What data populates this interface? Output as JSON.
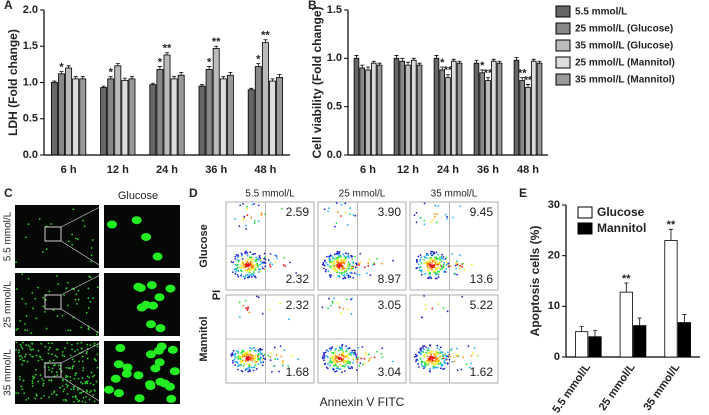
{
  "chart_data": [
    {
      "type": "bar",
      "panel": "A",
      "y_label": "LDH (Fold change)",
      "categories": [
        "6 h",
        "12 h",
        "24 h",
        "36 h",
        "48 h"
      ],
      "ylim": [
        0,
        2
      ],
      "yticks": [
        {
          "value": 0,
          "label": "0.0"
        },
        0.5,
        {
          "value": 1,
          "label": "1.0"
        },
        1.5,
        {
          "value": 2,
          "label": "2.0"
        }
      ],
      "grid": false,
      "series": [
        {
          "color": "#666666",
          "values": [
            1.0,
            0.93,
            0.97,
            0.95,
            0.9
          ],
          "errors": [
            0.02,
            0.02,
            0.02,
            0.02,
            0.02
          ],
          "significance": [
            null,
            null,
            null,
            null,
            null
          ]
        },
        {
          "color": "#888888",
          "values": [
            1.12,
            1.05,
            1.18,
            1.18,
            1.22
          ],
          "errors": [
            0.03,
            0.03,
            0.04,
            0.04,
            0.04
          ],
          "significance": [
            "*",
            "*",
            "*",
            "*",
            "*"
          ]
        },
        {
          "color": "#bbbbbb",
          "values": [
            1.2,
            1.23,
            1.38,
            1.47,
            1.55
          ],
          "errors": [
            0.03,
            0.03,
            0.03,
            0.03,
            0.04
          ],
          "significance": [
            null,
            null,
            "**",
            "**",
            "**"
          ]
        },
        {
          "color": "#dddddd",
          "values": [
            1.05,
            1.03,
            1.05,
            1.05,
            1.02
          ],
          "errors": [
            0.03,
            0.03,
            0.03,
            0.03,
            0.03
          ],
          "significance": [
            null,
            null,
            null,
            null,
            null
          ]
        },
        {
          "color": "#999999",
          "values": [
            1.05,
            1.05,
            1.1,
            1.1,
            1.07
          ],
          "errors": [
            0.03,
            0.03,
            0.04,
            0.04,
            0.04
          ],
          "significance": [
            null,
            null,
            null,
            null,
            null
          ]
        }
      ]
    },
    {
      "type": "bar",
      "panel": "B",
      "y_label": "Cell viability (Fold change)",
      "categories": [
        "6 h",
        "12 h",
        "24 h",
        "36 h",
        "48 h"
      ],
      "ylim": [
        0,
        1.5
      ],
      "yticks": [
        {
          "value": 0,
          "label": "0.0"
        },
        0.5,
        {
          "value": 1,
          "label": "1.0"
        },
        1.5
      ],
      "grid": false,
      "legend": "right",
      "series": [
        {
          "name": "5.5 mmol/L",
          "color": "#666666",
          "values": [
            1.0,
            1.0,
            1.0,
            0.95,
            0.98
          ],
          "errors": [
            0.03,
            0.03,
            0.03,
            0.03,
            0.03
          ],
          "significance": [
            null,
            null,
            null,
            null,
            null
          ]
        },
        {
          "name": "25 mmol/L (Glucose)",
          "color": "#888888",
          "values": [
            0.9,
            0.97,
            0.88,
            0.85,
            0.77
          ],
          "errors": [
            0.03,
            0.03,
            0.03,
            0.03,
            0.03
          ],
          "significance": [
            null,
            null,
            "*",
            "*",
            "**"
          ]
        },
        {
          "name": "35 mmol/L (Glucose)",
          "color": "#bbbbbb",
          "values": [
            0.88,
            0.93,
            0.8,
            0.77,
            0.7
          ],
          "errors": [
            0.03,
            0.03,
            0.03,
            0.03,
            0.03
          ],
          "significance": [
            null,
            null,
            "**",
            "**",
            "**"
          ]
        },
        {
          "name": "25 mmol/L (Mannitol)",
          "color": "#dddddd",
          "values": [
            0.95,
            0.98,
            0.97,
            0.97,
            0.97
          ],
          "errors": [
            0.02,
            0.02,
            0.02,
            0.02,
            0.02
          ],
          "significance": [
            null,
            null,
            null,
            null,
            null
          ]
        },
        {
          "name": "35 mmol/L (Mannitol)",
          "color": "#999999",
          "values": [
            0.93,
            0.93,
            0.95,
            0.95,
            0.95
          ],
          "errors": [
            0.02,
            0.02,
            0.02,
            0.02,
            0.02
          ],
          "significance": [
            null,
            null,
            null,
            null,
            null
          ]
        }
      ]
    },
    {
      "type": "bar",
      "panel": "E",
      "y_label": "Apoptosis cells (%)",
      "categories": [
        "5.5 mmol/L",
        "25 mmol/L",
        "35 mmol/L"
      ],
      "ylim": [
        0,
        30
      ],
      "yticks": [
        0,
        10,
        20,
        30
      ],
      "grid": false,
      "legend": "top-left",
      "series": [
        {
          "name": "Glucose",
          "color": "#ffffff",
          "values": [
            5,
            12.8,
            23
          ],
          "errors": [
            1,
            1.8,
            2.2
          ],
          "significance": [
            null,
            "**",
            "**"
          ]
        },
        {
          "name": "Mannitol",
          "color": "#000000",
          "values": [
            4,
            6.2,
            6.8
          ],
          "errors": [
            1.2,
            1.5,
            1.6
          ],
          "significance": [
            null,
            null,
            null
          ]
        }
      ]
    }
  ],
  "microscopy": {
    "panel": "C",
    "title": "Glucose",
    "rows": [
      "5.5 mmol/L",
      "25 mmol/L",
      "35 mmol/L"
    ]
  },
  "flow_cytometry": {
    "panel": "D",
    "columns": [
      "5.5 mmol/L",
      "25 mmol/L",
      "35 mmol/L"
    ],
    "rows": [
      {
        "label": "Glucose",
        "upper": [
          "2.59",
          "3.90",
          "9.45"
        ],
        "lower": [
          "2.32",
          "8.97",
          "13.6"
        ]
      },
      {
        "label": "Mannitol",
        "upper": [
          "2.32",
          "3.05",
          "5.22"
        ],
        "lower": [
          "1.68",
          "3.04",
          "1.62"
        ]
      }
    ],
    "y_label": "PI",
    "x_label": "Annexin V FITC"
  }
}
